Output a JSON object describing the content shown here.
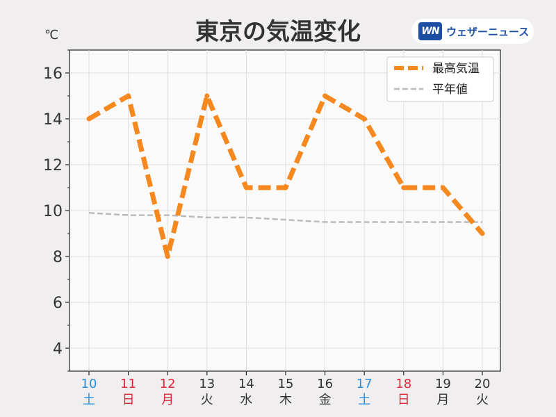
{
  "chart_data": {
    "type": "line",
    "title": "東京の気温変化",
    "unit": "℃",
    "categories": [
      "10",
      "11",
      "12",
      "13",
      "14",
      "15",
      "16",
      "17",
      "18",
      "19",
      "20"
    ],
    "weekdays": [
      "土",
      "日",
      "月",
      "火",
      "水",
      "木",
      "金",
      "土",
      "日",
      "月",
      "火"
    ],
    "category_colors": [
      "#2a8fd8",
      "#e0283a",
      "#e0283a",
      "#333333",
      "#333333",
      "#333333",
      "#333333",
      "#2a8fd8",
      "#e0283a",
      "#333333",
      "#333333"
    ],
    "ylim": [
      3,
      17
    ],
    "yticks": [
      4,
      6,
      8,
      10,
      12,
      14,
      16
    ],
    "grid": true,
    "legend_position": "top-right",
    "series": [
      {
        "name": "最高気温",
        "color": "#f5891f",
        "values": [
          14,
          15,
          8,
          15,
          11,
          11,
          15,
          14,
          11,
          11,
          9
        ]
      },
      {
        "name": "平年値",
        "color": "#bbbbbb",
        "values": [
          9.9,
          9.8,
          9.8,
          9.7,
          9.7,
          9.6,
          9.5,
          9.5,
          9.5,
          9.5,
          9.5
        ]
      }
    ]
  },
  "brand": {
    "logo": "WN",
    "name": "ウェザーニュース"
  }
}
